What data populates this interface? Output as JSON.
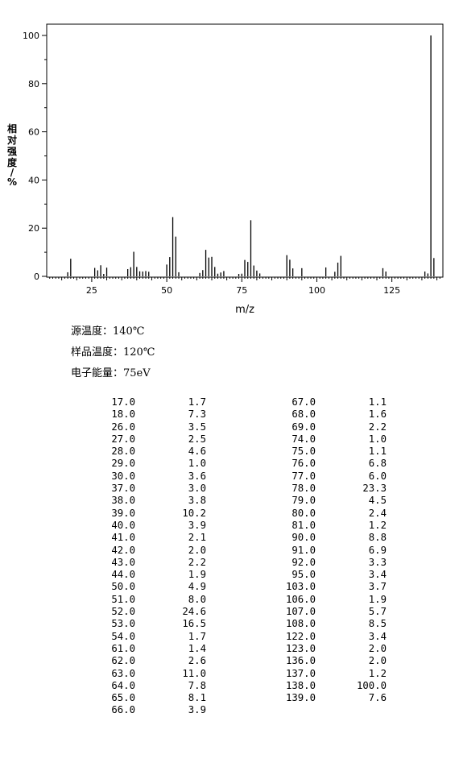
{
  "chart_data": {
    "type": "bar",
    "xlabel": "m/z",
    "ylabel": "相对强度/%",
    "xlim": [
      10,
      142
    ],
    "ylim": [
      0,
      100
    ],
    "x_ticks": [
      25,
      50,
      75,
      100,
      125
    ],
    "y_ticks": [
      0,
      20,
      40,
      60,
      80,
      100
    ],
    "grid": false,
    "peaks": [
      {
        "mz": 17.0,
        "intensity": 1.7
      },
      {
        "mz": 18.0,
        "intensity": 7.3
      },
      {
        "mz": 26.0,
        "intensity": 3.5
      },
      {
        "mz": 27.0,
        "intensity": 2.5
      },
      {
        "mz": 28.0,
        "intensity": 4.6
      },
      {
        "mz": 29.0,
        "intensity": 1.0
      },
      {
        "mz": 30.0,
        "intensity": 3.6
      },
      {
        "mz": 37.0,
        "intensity": 3.0
      },
      {
        "mz": 38.0,
        "intensity": 3.8
      },
      {
        "mz": 39.0,
        "intensity": 10.2
      },
      {
        "mz": 40.0,
        "intensity": 3.9
      },
      {
        "mz": 41.0,
        "intensity": 2.1
      },
      {
        "mz": 42.0,
        "intensity": 2.0
      },
      {
        "mz": 43.0,
        "intensity": 2.2
      },
      {
        "mz": 44.0,
        "intensity": 1.9
      },
      {
        "mz": 50.0,
        "intensity": 4.9
      },
      {
        "mz": 51.0,
        "intensity": 8.0
      },
      {
        "mz": 52.0,
        "intensity": 24.6
      },
      {
        "mz": 53.0,
        "intensity": 16.5
      },
      {
        "mz": 54.0,
        "intensity": 1.7
      },
      {
        "mz": 61.0,
        "intensity": 1.4
      },
      {
        "mz": 62.0,
        "intensity": 2.6
      },
      {
        "mz": 63.0,
        "intensity": 11.0
      },
      {
        "mz": 64.0,
        "intensity": 7.8
      },
      {
        "mz": 65.0,
        "intensity": 8.1
      },
      {
        "mz": 66.0,
        "intensity": 3.9
      },
      {
        "mz": 67.0,
        "intensity": 1.1
      },
      {
        "mz": 68.0,
        "intensity": 1.6
      },
      {
        "mz": 69.0,
        "intensity": 2.2
      },
      {
        "mz": 74.0,
        "intensity": 1.0
      },
      {
        "mz": 75.0,
        "intensity": 1.1
      },
      {
        "mz": 76.0,
        "intensity": 6.8
      },
      {
        "mz": 77.0,
        "intensity": 6.0
      },
      {
        "mz": 78.0,
        "intensity": 23.3
      },
      {
        "mz": 79.0,
        "intensity": 4.5
      },
      {
        "mz": 80.0,
        "intensity": 2.4
      },
      {
        "mz": 81.0,
        "intensity": 1.2
      },
      {
        "mz": 90.0,
        "intensity": 8.8
      },
      {
        "mz": 91.0,
        "intensity": 6.9
      },
      {
        "mz": 92.0,
        "intensity": 3.3
      },
      {
        "mz": 95.0,
        "intensity": 3.4
      },
      {
        "mz": 103.0,
        "intensity": 3.7
      },
      {
        "mz": 106.0,
        "intensity": 1.9
      },
      {
        "mz": 107.0,
        "intensity": 5.7
      },
      {
        "mz": 108.0,
        "intensity": 8.5
      },
      {
        "mz": 122.0,
        "intensity": 3.4
      },
      {
        "mz": 123.0,
        "intensity": 2.0
      },
      {
        "mz": 136.0,
        "intensity": 2.0
      },
      {
        "mz": 137.0,
        "intensity": 1.2
      },
      {
        "mz": 138.0,
        "intensity": 100.0
      },
      {
        "mz": 139.0,
        "intensity": 7.6
      }
    ]
  },
  "conditions": {
    "source_temp": "源温度：140℃",
    "sample_temp": "样品温度：120℃",
    "electron_energy": "电子能量：75eV"
  },
  "table": {
    "left": [
      [
        "17.0",
        "1.7"
      ],
      [
        "18.0",
        "7.3"
      ],
      [
        "26.0",
        "3.5"
      ],
      [
        "27.0",
        "2.5"
      ],
      [
        "28.0",
        "4.6"
      ],
      [
        "29.0",
        "1.0"
      ],
      [
        "30.0",
        "3.6"
      ],
      [
        "37.0",
        "3.0"
      ],
      [
        "38.0",
        "3.8"
      ],
      [
        "39.0",
        "10.2"
      ],
      [
        "40.0",
        "3.9"
      ],
      [
        "41.0",
        "2.1"
      ],
      [
        "42.0",
        "2.0"
      ],
      [
        "43.0",
        "2.2"
      ],
      [
        "44.0",
        "1.9"
      ],
      [
        "50.0",
        "4.9"
      ],
      [
        "51.0",
        "8.0"
      ],
      [
        "52.0",
        "24.6"
      ],
      [
        "53.0",
        "16.5"
      ],
      [
        "54.0",
        "1.7"
      ],
      [
        "61.0",
        "1.4"
      ],
      [
        "62.0",
        "2.6"
      ],
      [
        "63.0",
        "11.0"
      ],
      [
        "64.0",
        "7.8"
      ],
      [
        "65.0",
        "8.1"
      ],
      [
        "66.0",
        "3.9"
      ]
    ],
    "right": [
      [
        "67.0",
        "1.1"
      ],
      [
        "68.0",
        "1.6"
      ],
      [
        "69.0",
        "2.2"
      ],
      [
        "74.0",
        "1.0"
      ],
      [
        "75.0",
        "1.1"
      ],
      [
        "76.0",
        "6.8"
      ],
      [
        "77.0",
        "6.0"
      ],
      [
        "78.0",
        "23.3"
      ],
      [
        "79.0",
        "4.5"
      ],
      [
        "80.0",
        "2.4"
      ],
      [
        "81.0",
        "1.2"
      ],
      [
        "90.0",
        "8.8"
      ],
      [
        "91.0",
        "6.9"
      ],
      [
        "92.0",
        "3.3"
      ],
      [
        "95.0",
        "3.4"
      ],
      [
        "103.0",
        "3.7"
      ],
      [
        "106.0",
        "1.9"
      ],
      [
        "107.0",
        "5.7"
      ],
      [
        "108.0",
        "8.5"
      ],
      [
        "122.0",
        "3.4"
      ],
      [
        "123.0",
        "2.0"
      ],
      [
        "136.0",
        "2.0"
      ],
      [
        "137.0",
        "1.2"
      ],
      [
        "138.0",
        "100.0"
      ],
      [
        "139.0",
        "7.6"
      ]
    ]
  }
}
